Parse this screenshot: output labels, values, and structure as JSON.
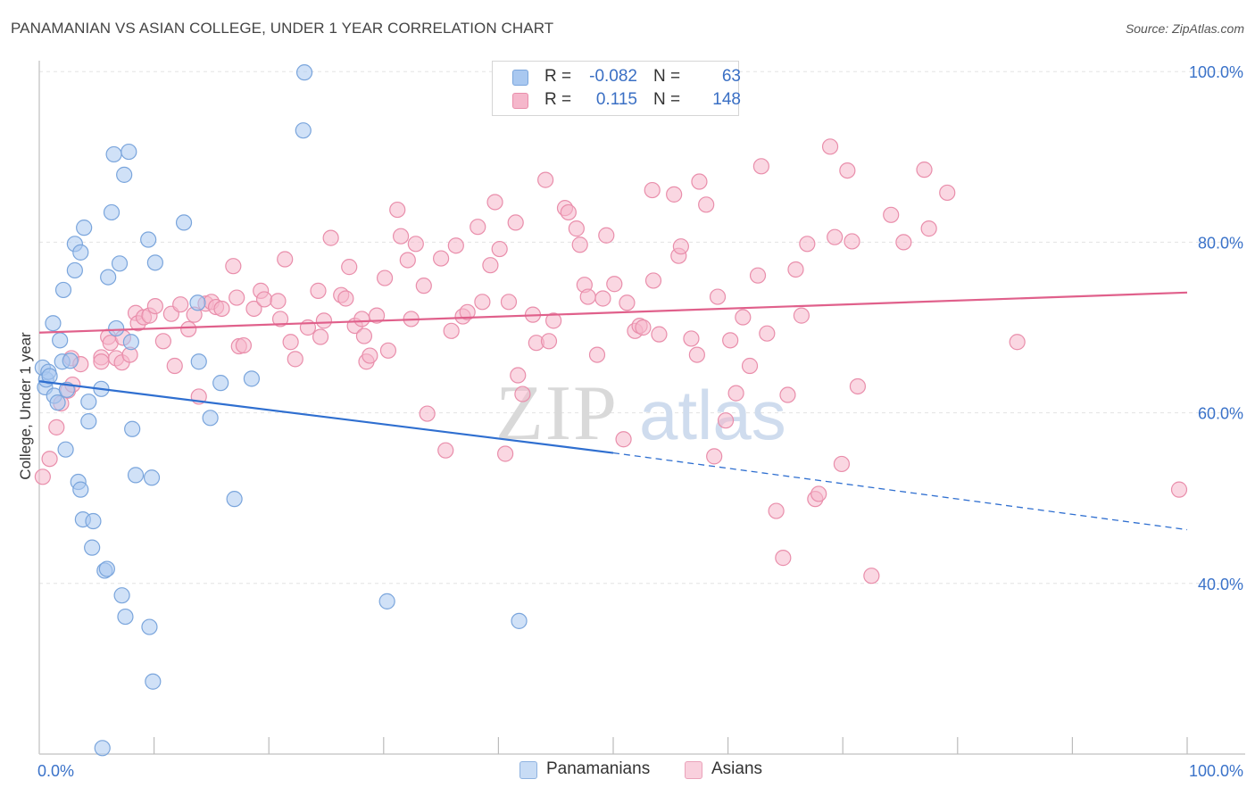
{
  "title": "PANAMANIAN VS ASIAN COLLEGE, UNDER 1 YEAR CORRELATION CHART",
  "source": "Source: ZipAtlas.com",
  "legend": {
    "series": [
      {
        "name": "Panamanians",
        "r_label": "R =",
        "r_value": "-0.082",
        "n_label": "N =",
        "n_value": "63"
      },
      {
        "name": "Asians",
        "r_label": "R =",
        "r_value": "0.115",
        "n_label": "N =",
        "n_value": "148"
      }
    ]
  },
  "colors": {
    "blue_fill": "#a9c8f0",
    "blue_stroke": "#7aa5dc",
    "blue_line": "#2f6fd0",
    "pink_fill": "#f5b7cb",
    "pink_stroke": "#e98eab",
    "pink_line": "#e0608b",
    "tick_text": "#3a72c9",
    "grid": "#e3e3e3"
  },
  "chart_data": {
    "type": "scatter",
    "title": "PANAMANIAN VS ASIAN COLLEGE, UNDER 1 YEAR CORRELATION CHART",
    "xlabel": "",
    "ylabel": "College, Under 1 year",
    "xlim": [
      0,
      100
    ],
    "ylim": [
      20,
      102
    ],
    "x_tick_labels": [
      "0.0%",
      "100.0%"
    ],
    "y_ticks": [
      40,
      60,
      80,
      100
    ],
    "y_tick_labels": [
      "40.0%",
      "60.0%",
      "80.0%",
      "100.0%"
    ],
    "watermark": {
      "part1": "ZIP",
      "part2": "atlas"
    },
    "series": [
      {
        "name": "Panamanians",
        "trend": {
          "x0": 0,
          "y0": 63.7,
          "x1": 50,
          "y1": 55.3,
          "dash_x1": 100,
          "dash_y1": 46.3
        },
        "points": [
          [
            0.3,
            65.3
          ],
          [
            0.5,
            63.0
          ],
          [
            0.6,
            63.9
          ],
          [
            0.8,
            64.8
          ],
          [
            0.9,
            64.3
          ],
          [
            1.2,
            70.5
          ],
          [
            1.3,
            62.0
          ],
          [
            1.6,
            61.2
          ],
          [
            1.8,
            68.5
          ],
          [
            2.0,
            66.0
          ],
          [
            2.1,
            74.4
          ],
          [
            2.3,
            55.7
          ],
          [
            2.4,
            62.7
          ],
          [
            2.7,
            66.1
          ],
          [
            3.1,
            76.7
          ],
          [
            3.1,
            79.8
          ],
          [
            3.4,
            51.9
          ],
          [
            3.6,
            51.0
          ],
          [
            3.6,
            78.8
          ],
          [
            3.8,
            47.5
          ],
          [
            3.9,
            81.7
          ],
          [
            4.3,
            59.0
          ],
          [
            4.3,
            61.3
          ],
          [
            4.6,
            44.2
          ],
          [
            4.7,
            47.3
          ],
          [
            5.4,
            62.8
          ],
          [
            5.7,
            41.5
          ],
          [
            5.9,
            41.7
          ],
          [
            6.0,
            75.9
          ],
          [
            6.3,
            83.5
          ],
          [
            6.5,
            90.3
          ],
          [
            6.7,
            69.9
          ],
          [
            7.0,
            77.5
          ],
          [
            7.2,
            38.6
          ],
          [
            7.4,
            87.9
          ],
          [
            7.5,
            36.1
          ],
          [
            7.8,
            90.6
          ],
          [
            8.0,
            68.3
          ],
          [
            8.1,
            58.1
          ],
          [
            8.4,
            52.7
          ],
          [
            9.5,
            80.3
          ],
          [
            9.6,
            34.9
          ],
          [
            9.8,
            52.4
          ],
          [
            9.9,
            28.5
          ],
          [
            10.1,
            77.6
          ],
          [
            12.6,
            82.3
          ],
          [
            13.8,
            72.9
          ],
          [
            13.9,
            66.0
          ],
          [
            14.9,
            59.4
          ],
          [
            15.8,
            63.5
          ],
          [
            17.0,
            49.9
          ],
          [
            18.5,
            64.0
          ],
          [
            23.0,
            93.1
          ],
          [
            23.1,
            99.9
          ],
          [
            30.3,
            37.9
          ],
          [
            41.8,
            35.6
          ],
          [
            5.5,
            20.7
          ]
        ]
      },
      {
        "name": "Asians",
        "trend": {
          "x0": 0,
          "y0": 69.4,
          "x1": 100,
          "y1": 74.1
        },
        "points": [
          [
            0.3,
            52.5
          ],
          [
            0.9,
            54.6
          ],
          [
            1.5,
            58.3
          ],
          [
            1.9,
            61.1
          ],
          [
            2.5,
            62.6
          ],
          [
            2.8,
            66.4
          ],
          [
            2.9,
            63.3
          ],
          [
            3.6,
            65.7
          ],
          [
            5.4,
            66.5
          ],
          [
            5.4,
            66.0
          ],
          [
            6.0,
            68.9
          ],
          [
            6.2,
            68.2
          ],
          [
            6.7,
            66.4
          ],
          [
            7.2,
            65.9
          ],
          [
            7.3,
            68.8
          ],
          [
            7.9,
            66.8
          ],
          [
            8.4,
            71.7
          ],
          [
            8.6,
            70.5
          ],
          [
            9.1,
            71.2
          ],
          [
            9.6,
            71.4
          ],
          [
            10.1,
            72.5
          ],
          [
            10.8,
            68.4
          ],
          [
            11.5,
            71.6
          ],
          [
            11.8,
            65.5
          ],
          [
            12.3,
            72.7
          ],
          [
            13.0,
            69.8
          ],
          [
            13.5,
            71.5
          ],
          [
            13.9,
            61.9
          ],
          [
            14.5,
            72.8
          ],
          [
            15.0,
            73.0
          ],
          [
            15.4,
            72.4
          ],
          [
            15.9,
            72.2
          ],
          [
            16.9,
            77.2
          ],
          [
            17.2,
            73.5
          ],
          [
            17.4,
            67.8
          ],
          [
            17.8,
            67.9
          ],
          [
            18.7,
            72.2
          ],
          [
            19.3,
            74.3
          ],
          [
            19.6,
            73.3
          ],
          [
            20.8,
            73.1
          ],
          [
            21.0,
            71.0
          ],
          [
            21.4,
            78.0
          ],
          [
            21.9,
            68.3
          ],
          [
            22.3,
            66.3
          ],
          [
            23.4,
            70.0
          ],
          [
            24.3,
            74.3
          ],
          [
            24.5,
            68.9
          ],
          [
            24.8,
            70.8
          ],
          [
            25.4,
            80.5
          ],
          [
            26.3,
            73.8
          ],
          [
            26.7,
            73.4
          ],
          [
            27.0,
            77.1
          ],
          [
            27.5,
            70.2
          ],
          [
            28.1,
            71.0
          ],
          [
            28.3,
            69.0
          ],
          [
            28.5,
            66.0
          ],
          [
            28.8,
            66.7
          ],
          [
            29.4,
            71.4
          ],
          [
            30.1,
            75.8
          ],
          [
            30.4,
            67.3
          ],
          [
            31.2,
            83.8
          ],
          [
            31.5,
            80.7
          ],
          [
            32.1,
            77.9
          ],
          [
            32.4,
            71.0
          ],
          [
            32.8,
            79.8
          ],
          [
            33.5,
            74.9
          ],
          [
            33.8,
            59.9
          ],
          [
            35.0,
            78.1
          ],
          [
            35.4,
            55.6
          ],
          [
            35.9,
            69.6
          ],
          [
            36.3,
            79.6
          ],
          [
            36.9,
            71.3
          ],
          [
            37.3,
            71.8
          ],
          [
            38.2,
            81.8
          ],
          [
            38.6,
            73.0
          ],
          [
            39.3,
            77.3
          ],
          [
            39.7,
            84.7
          ],
          [
            40.1,
            79.2
          ],
          [
            40.6,
            55.2
          ],
          [
            40.9,
            73.0
          ],
          [
            41.5,
            82.3
          ],
          [
            41.7,
            64.4
          ],
          [
            42.1,
            62.2
          ],
          [
            43.0,
            71.5
          ],
          [
            43.3,
            68.2
          ],
          [
            44.1,
            87.3
          ],
          [
            44.4,
            68.4
          ],
          [
            44.8,
            70.8
          ],
          [
            45.8,
            84.0
          ],
          [
            46.1,
            83.5
          ],
          [
            46.8,
            81.6
          ],
          [
            47.1,
            79.7
          ],
          [
            47.5,
            75.0
          ],
          [
            47.8,
            73.6
          ],
          [
            48.6,
            66.8
          ],
          [
            49.1,
            73.4
          ],
          [
            49.4,
            80.8
          ],
          [
            50.1,
            75.1
          ],
          [
            50.9,
            56.9
          ],
          [
            51.2,
            72.9
          ],
          [
            51.9,
            69.6
          ],
          [
            52.3,
            70.2
          ],
          [
            52.6,
            70.0
          ],
          [
            53.4,
            86.1
          ],
          [
            53.5,
            75.5
          ],
          [
            54.0,
            69.2
          ],
          [
            55.3,
            85.6
          ],
          [
            55.7,
            78.4
          ],
          [
            55.9,
            79.5
          ],
          [
            56.8,
            68.7
          ],
          [
            57.3,
            66.8
          ],
          [
            57.5,
            87.1
          ],
          [
            58.1,
            84.4
          ],
          [
            58.8,
            54.9
          ],
          [
            59.1,
            73.6
          ],
          [
            59.8,
            59.1
          ],
          [
            60.2,
            68.5
          ],
          [
            60.7,
            62.3
          ],
          [
            61.3,
            71.2
          ],
          [
            61.9,
            65.5
          ],
          [
            62.6,
            76.1
          ],
          [
            62.9,
            88.9
          ],
          [
            63.4,
            69.3
          ],
          [
            64.2,
            48.5
          ],
          [
            64.8,
            43.0
          ],
          [
            65.2,
            62.1
          ],
          [
            65.9,
            76.8
          ],
          [
            66.4,
            71.4
          ],
          [
            66.9,
            79.8
          ],
          [
            67.6,
            49.9
          ],
          [
            67.9,
            50.5
          ],
          [
            68.9,
            91.2
          ],
          [
            69.3,
            80.6
          ],
          [
            69.9,
            54.0
          ],
          [
            70.4,
            88.4
          ],
          [
            70.8,
            80.1
          ],
          [
            71.3,
            63.1
          ],
          [
            72.5,
            40.9
          ],
          [
            74.2,
            83.2
          ],
          [
            75.3,
            80.0
          ],
          [
            77.1,
            88.5
          ],
          [
            77.5,
            81.6
          ],
          [
            79.1,
            85.8
          ],
          [
            85.2,
            68.3
          ],
          [
            99.3,
            51.0
          ]
        ]
      }
    ]
  }
}
